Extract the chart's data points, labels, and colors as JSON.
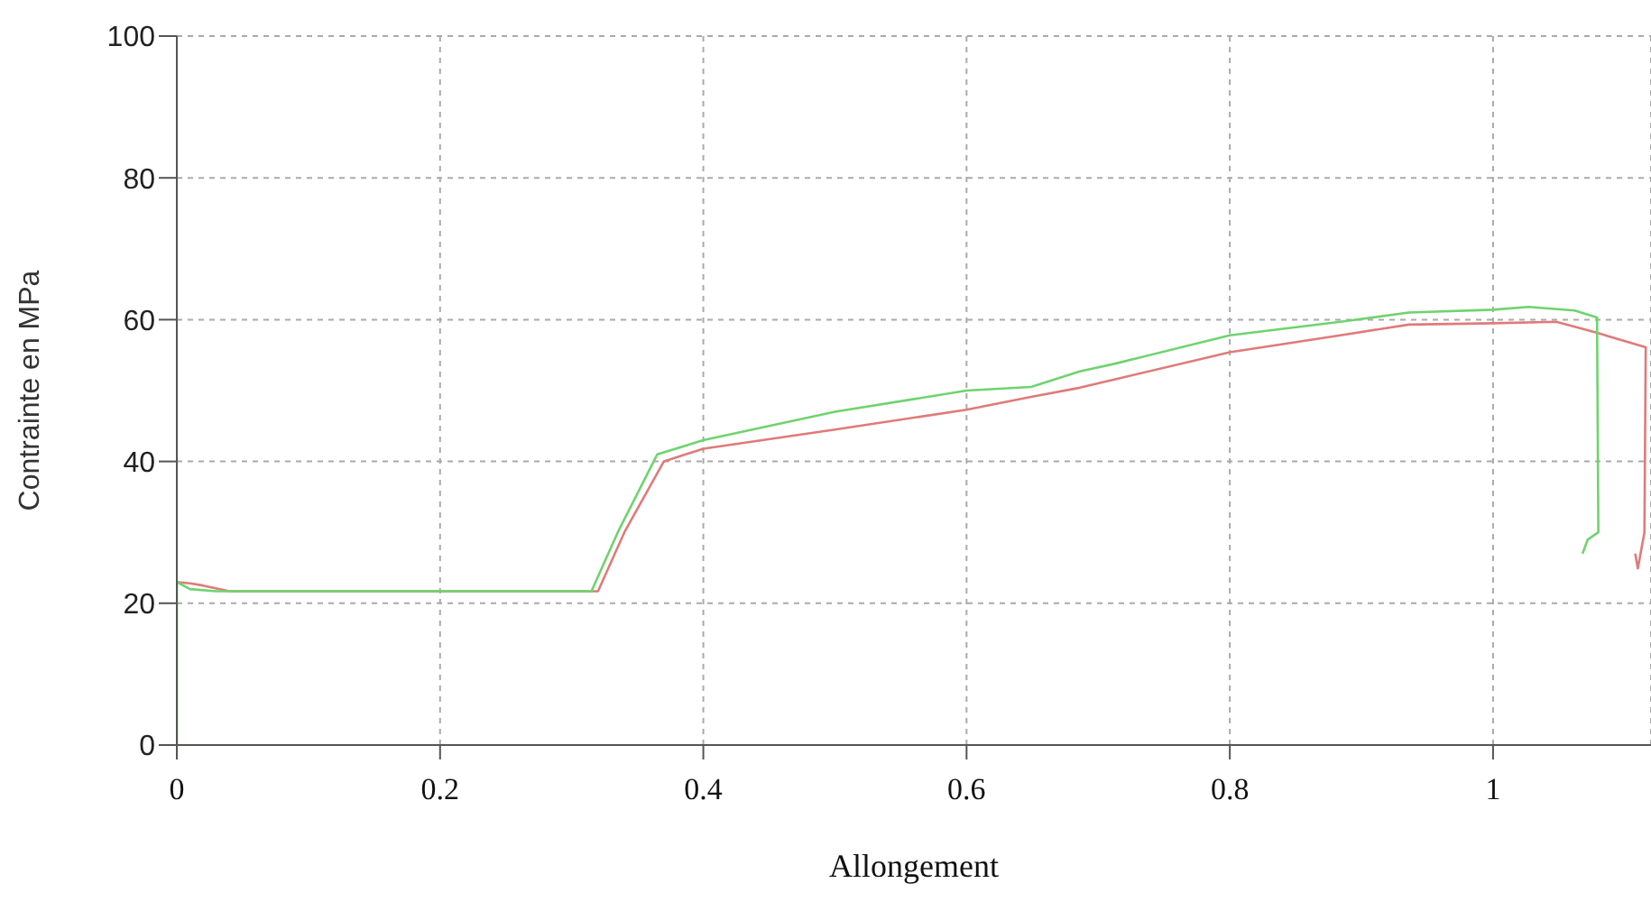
{
  "chart_data": {
    "type": "line",
    "xlabel": "Allongement",
    "ylabel": "Contrainte  en MPa",
    "xlim": [
      0,
      1.12
    ],
    "xticks": [
      0,
      0.2,
      0.4,
      0.6,
      0.8,
      1
    ],
    "ylim": [
      0,
      100
    ],
    "yticks": [
      0,
      20,
      40,
      60,
      80,
      100
    ],
    "grid": true,
    "marker": "none",
    "line_style": "solid",
    "series": [
      {
        "color": "#e07a7a",
        "x": [
          0,
          0.01,
          0.02,
          0.04,
          0.1,
          0.2,
          0.32,
          0.34,
          0.37,
          0.4,
          0.5,
          0.6,
          0.649,
          0.686,
          0.713,
          0.8,
          0.884,
          0.936,
          1,
          1.048,
          1.078,
          1.116,
          1.115,
          1.11,
          1.108
        ],
        "values": [
          23,
          22.8,
          22.5,
          21.7,
          21.7,
          21.7,
          21.7,
          30,
          40,
          41.8,
          44.5,
          47.3,
          49.1,
          50.4,
          51.6,
          55.4,
          57.8,
          59.3,
          59.5,
          59.7,
          58.2,
          56.1,
          30,
          24.9,
          27
        ]
      },
      {
        "color": "#6fd36f",
        "x": [
          0,
          0,
          0.01,
          0.03,
          0.1,
          0.2,
          0.315,
          0.335,
          0.365,
          0.4,
          0.5,
          0.6,
          0.649,
          0.686,
          0.713,
          0.8,
          0.884,
          0.936,
          1,
          1.027,
          1.062,
          1.079,
          1.08,
          1.072,
          1.068
        ],
        "values": [
          0,
          23,
          22,
          21.7,
          21.7,
          21.7,
          21.7,
          30,
          41,
          43,
          47,
          50,
          50.5,
          52.7,
          53.8,
          57.8,
          59.7,
          61,
          61.4,
          61.8,
          61.3,
          60.3,
          30,
          29,
          27
        ]
      }
    ]
  }
}
